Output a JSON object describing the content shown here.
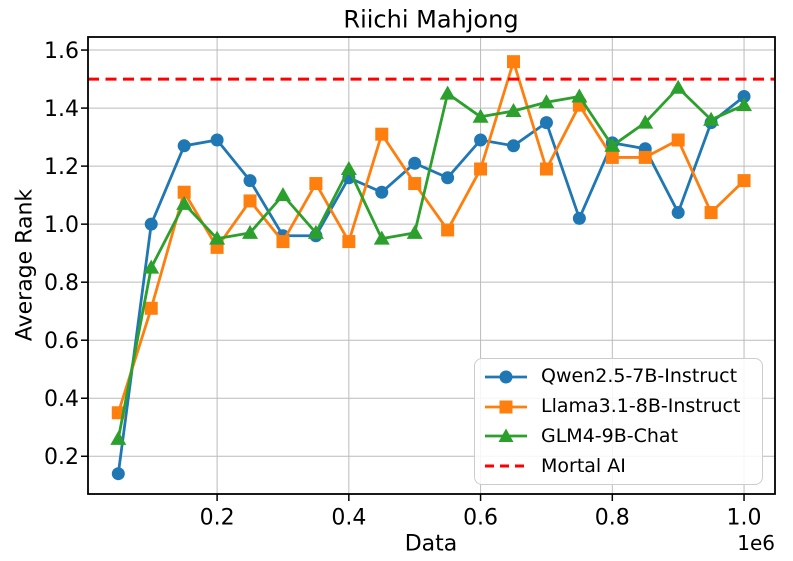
{
  "title": "Riichi Mahjong",
  "chart_data": {
    "type": "line",
    "title": "Riichi Mahjong",
    "xlabel": "Data",
    "ylabel": "Average Rank",
    "x_offset_label": "1e6",
    "x_unit_multiplier": 1000000,
    "x": [
      0.05,
      0.1,
      0.15,
      0.2,
      0.25,
      0.3,
      0.35,
      0.4,
      0.45,
      0.5,
      0.55,
      0.6,
      0.65,
      0.7,
      0.75,
      0.8,
      0.85,
      0.9,
      0.95,
      1.0
    ],
    "series": [
      {
        "name": "Qwen2.5-7B-Instruct",
        "color": "#1f77b4",
        "marker": "circle",
        "values": [
          0.14,
          1.0,
          1.27,
          1.29,
          1.15,
          0.96,
          0.96,
          1.16,
          1.11,
          1.21,
          1.16,
          1.29,
          1.27,
          1.35,
          1.02,
          1.28,
          1.26,
          1.04,
          1.35,
          1.44
        ]
      },
      {
        "name": "Llama3.1-8B-Instruct",
        "color": "#ff7f0e",
        "marker": "square",
        "values": [
          0.35,
          0.71,
          1.11,
          0.92,
          1.08,
          0.94,
          1.14,
          0.94,
          1.31,
          1.14,
          0.98,
          1.19,
          1.56,
          1.19,
          1.41,
          1.23,
          1.23,
          1.29,
          1.04,
          1.15
        ]
      },
      {
        "name": "GLM4-9B-Chat",
        "color": "#2ca02c",
        "marker": "triangle",
        "values": [
          0.26,
          0.85,
          1.07,
          0.95,
          0.97,
          1.1,
          0.97,
          1.19,
          0.95,
          0.97,
          1.45,
          1.37,
          1.39,
          1.42,
          1.44,
          1.27,
          1.35,
          1.47,
          1.36,
          1.41
        ]
      }
    ],
    "reference_line": {
      "name": "Mortal AI",
      "color": "#ff0000",
      "style": "dashed",
      "y": 1.5
    },
    "xticks": [
      0.2,
      0.4,
      0.6,
      0.8,
      1.0
    ],
    "xtick_labels": [
      "0.2",
      "0.4",
      "0.6",
      "0.8",
      "1.0"
    ],
    "yticks": [
      0.2,
      0.4,
      0.6,
      0.8,
      1.0,
      1.2,
      1.4,
      1.6
    ],
    "ytick_labels": [
      "0.2",
      "0.4",
      "0.6",
      "0.8",
      "1.0",
      "1.2",
      "1.4",
      "1.6"
    ],
    "xlim": [
      0.004,
      1.047
    ],
    "ylim": [
      0.07,
      1.645
    ],
    "grid": true,
    "grid_color": "#bbbbbb",
    "legend_position": "lower right"
  }
}
